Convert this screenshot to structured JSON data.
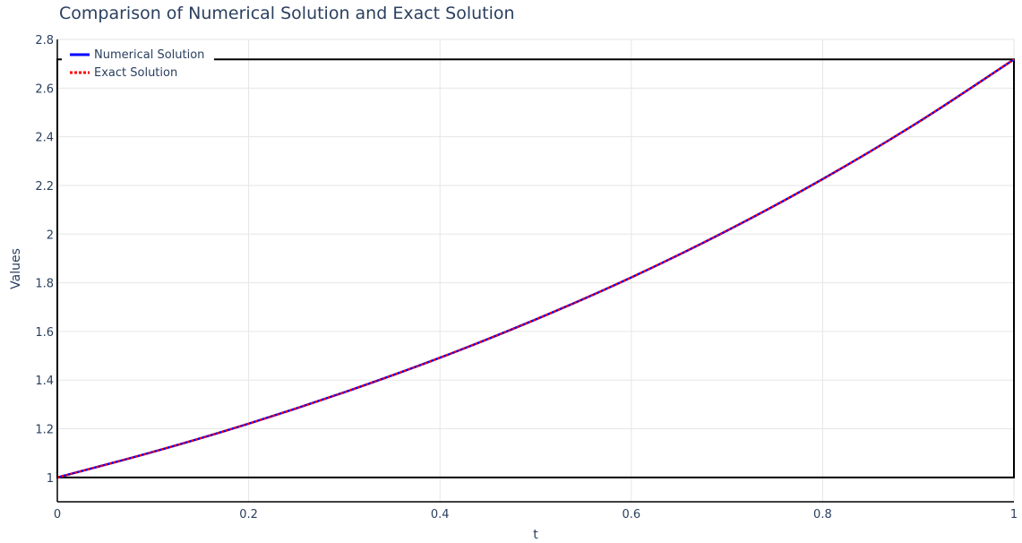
{
  "chart_data": {
    "type": "line",
    "title": "Comparison of Numerical Solution and Exact Solution",
    "xlabel": "t",
    "ylabel": "Values",
    "xlim": [
      0,
      1
    ],
    "ylim": [
      0.9,
      2.8
    ],
    "grid": true,
    "legend_position": "top-left",
    "x_ticks": [
      "0",
      "0.2",
      "0.4",
      "0.6",
      "0.8",
      "1"
    ],
    "y_ticks": [
      "1",
      "1.2",
      "1.4",
      "1.6",
      "1.8",
      "2",
      "2.2",
      "2.4",
      "2.6",
      "2.8"
    ],
    "x": [
      0,
      0.1,
      0.2,
      0.3,
      0.4,
      0.5,
      0.6,
      0.7,
      0.8,
      0.9,
      1.0
    ],
    "series": [
      {
        "name": "Numerical Solution",
        "color": "#0000ff",
        "line_style": "solid",
        "values": [
          1.0,
          1.105,
          1.221,
          1.35,
          1.492,
          1.649,
          1.822,
          2.014,
          2.226,
          2.46,
          2.718
        ]
      },
      {
        "name": "Exact Solution",
        "color": "#ff0000",
        "line_style": "dotted",
        "values": [
          1.0,
          1.105,
          1.221,
          1.35,
          1.492,
          1.649,
          1.822,
          2.014,
          2.226,
          2.46,
          2.718
        ]
      }
    ],
    "shapes": [
      {
        "type": "rect",
        "x0": 0,
        "x1": 1,
        "y0": 1.0,
        "y1": 2.718,
        "color": "#000000"
      }
    ]
  }
}
